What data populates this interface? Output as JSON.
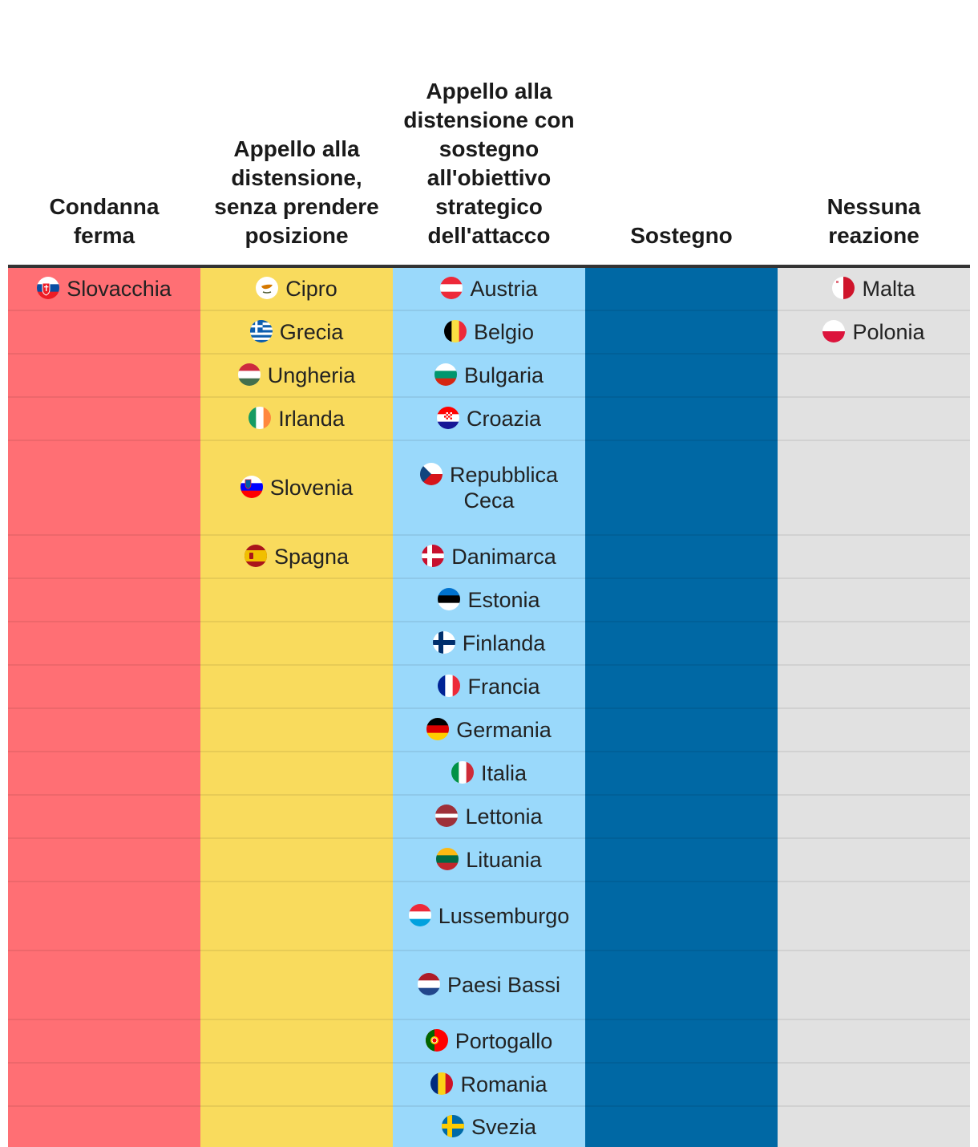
{
  "chart_data": {
    "type": "table",
    "columns": [
      {
        "key": "condanna",
        "header": "Condanna ferma",
        "color": "#ff6f74",
        "text_color": "#ffffff",
        "countries": [
          {
            "name": "Slovacchia",
            "flag": "slovakia-flag"
          }
        ]
      },
      {
        "key": "distensione",
        "header": "Appello alla distensione, senza prendere posizione",
        "color": "#f9db5d",
        "text_color": "#222222",
        "countries": [
          {
            "name": "Cipro",
            "flag": "cyprus-flag"
          },
          {
            "name": "Grecia",
            "flag": "greece-flag"
          },
          {
            "name": "Ungheria",
            "flag": "hungary-flag"
          },
          {
            "name": "Irlanda",
            "flag": "ireland-flag"
          },
          {
            "name": "Slovenia",
            "flag": "slovenia-flag"
          },
          {
            "name": "Spagna",
            "flag": "spain-flag"
          }
        ]
      },
      {
        "key": "distensione_sostegno",
        "header": "Appello alla distensione con sostegno all'obiettivo strategico dell'attacco",
        "color": "#9ad9fb",
        "text_color": "#222222",
        "countries": [
          {
            "name": "Austria",
            "flag": "austria-flag"
          },
          {
            "name": "Belgio",
            "flag": "belgium-flag"
          },
          {
            "name": "Bulgaria",
            "flag": "bulgaria-flag"
          },
          {
            "name": "Croazia",
            "flag": "croatia-flag"
          },
          {
            "name": "Repubblica Ceca",
            "flag": "czechia-flag"
          },
          {
            "name": "Danimarca",
            "flag": "denmark-flag"
          },
          {
            "name": "Estonia",
            "flag": "estonia-flag"
          },
          {
            "name": "Finlanda",
            "flag": "finland-flag"
          },
          {
            "name": "Francia",
            "flag": "france-flag"
          },
          {
            "name": "Germania",
            "flag": "germany-flag"
          },
          {
            "name": "Italia",
            "flag": "italy-flag"
          },
          {
            "name": "Lettonia",
            "flag": "latvia-flag"
          },
          {
            "name": "Lituania",
            "flag": "lithuania-flag"
          },
          {
            "name": "Lussemburgo",
            "flag": "luxembourg-flag"
          },
          {
            "name": "Paesi Bassi",
            "flag": "netherlands-flag"
          },
          {
            "name": "Portogallo",
            "flag": "portugal-flag"
          },
          {
            "name": "Romania",
            "flag": "romania-flag"
          },
          {
            "name": "Svezia",
            "flag": "sweden-flag"
          }
        ]
      },
      {
        "key": "sostegno",
        "header": "Sostegno",
        "color": "#0068a4",
        "text_color": "#ffffff",
        "countries": []
      },
      {
        "key": "nessuna",
        "header": "Nessuna reazione",
        "color": "#e1e1e1",
        "text_color": "#222222",
        "countries": [
          {
            "name": "Malta",
            "flag": "malta-flag"
          },
          {
            "name": "Polonia",
            "flag": "poland-flag"
          }
        ]
      }
    ]
  }
}
